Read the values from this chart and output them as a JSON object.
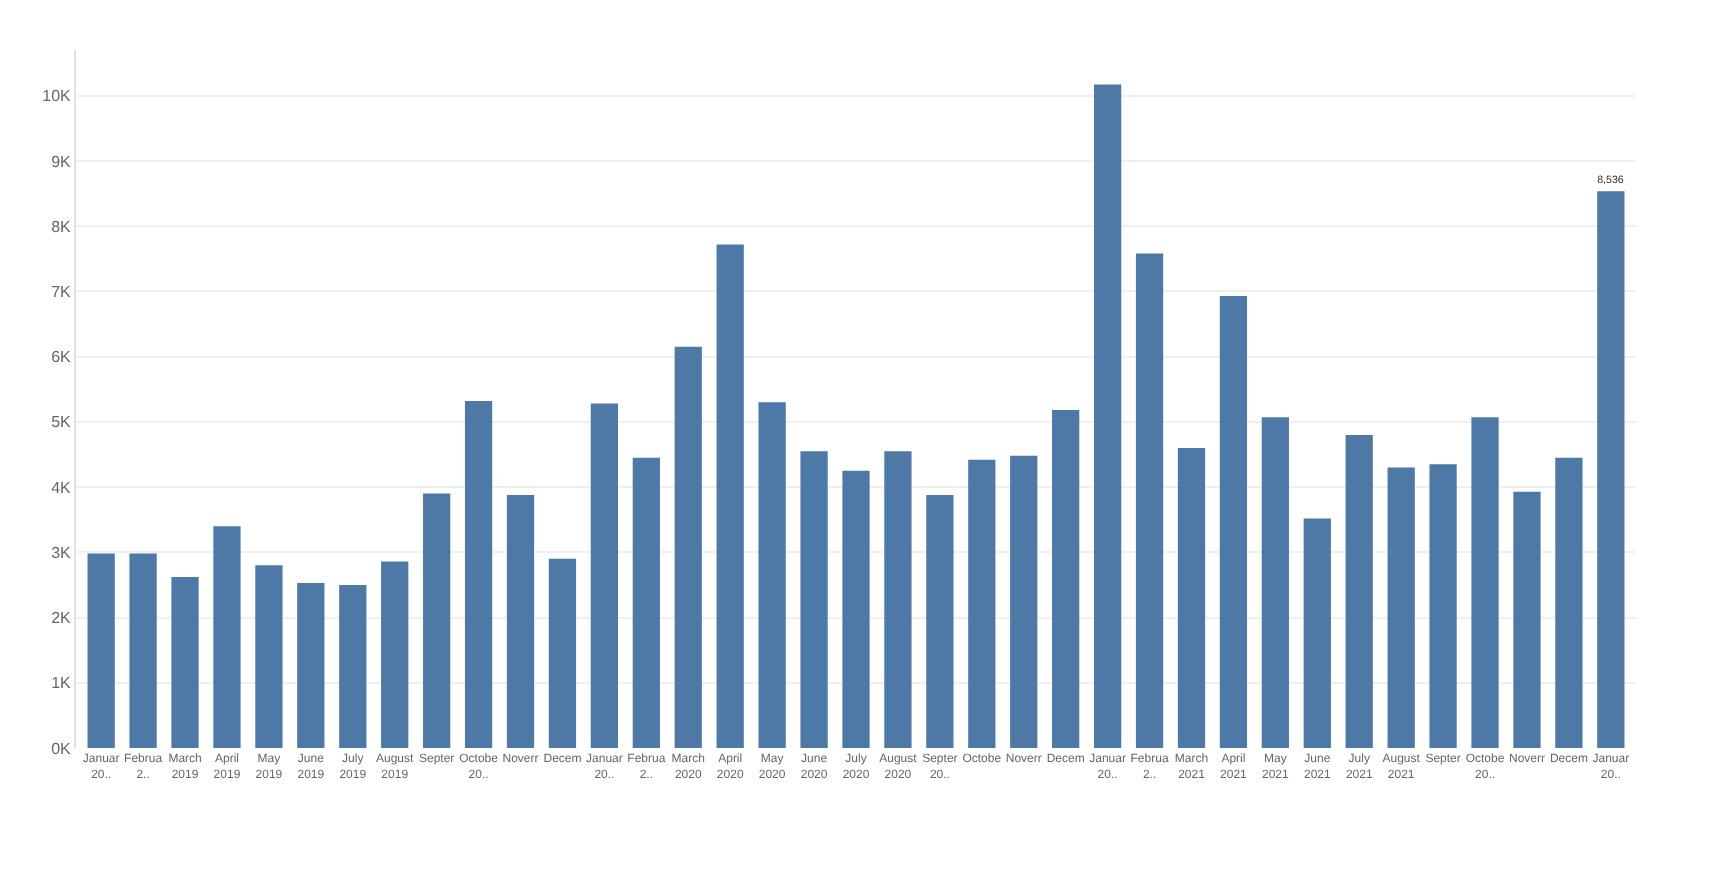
{
  "chart_data": {
    "type": "bar",
    "categories": [
      "Januar\n20..",
      "Februa\n2..",
      "March\n2019",
      "April\n2019",
      "May\n2019",
      "June\n2019",
      "July\n2019",
      "August\n2019",
      "Septer",
      "Octobe\n20..",
      "Noverr",
      "Decem",
      "Januar\n20..",
      "Februa\n2..",
      "March\n2020",
      "April\n2020",
      "May\n2020",
      "June\n2020",
      "July\n2020",
      "August\n2020",
      "Septer\n20..",
      "Octobe",
      "Noverr",
      "Decem",
      "Januar\n20..",
      "Februa\n2..",
      "March\n2021",
      "April\n2021",
      "May\n2021",
      "June\n2021",
      "July\n2021",
      "August\n2021",
      "Septer",
      "Octobe\n20..",
      "Noverr",
      "Decem",
      "Januar\n20.."
    ],
    "values": [
      2980,
      2980,
      2620,
      3400,
      2800,
      2530,
      2500,
      2860,
      3900,
      5320,
      3880,
      2900,
      5280,
      4450,
      6150,
      7720,
      5300,
      4550,
      4250,
      4550,
      3880,
      4420,
      4480,
      5180,
      10170,
      7580,
      4600,
      6930,
      5070,
      3520,
      4800,
      4300,
      4350,
      5070,
      3930,
      4450,
      8536
    ],
    "value_labels": [
      null,
      null,
      null,
      null,
      null,
      null,
      null,
      null,
      null,
      null,
      null,
      null,
      null,
      null,
      null,
      null,
      null,
      null,
      null,
      null,
      null,
      null,
      null,
      null,
      null,
      null,
      null,
      null,
      null,
      null,
      null,
      null,
      null,
      null,
      null,
      null,
      "8,536"
    ],
    "color": "#4e79a7",
    "ylim": [
      0,
      10700
    ],
    "yticks": [
      {
        "value": 0,
        "label": "0K"
      },
      {
        "value": 1000,
        "label": "1K"
      },
      {
        "value": 2000,
        "label": "2K"
      },
      {
        "value": 3000,
        "label": "3K"
      },
      {
        "value": 4000,
        "label": "4K"
      },
      {
        "value": 5000,
        "label": "5K"
      },
      {
        "value": 6000,
        "label": "6K"
      },
      {
        "value": 7000,
        "label": "7K"
      },
      {
        "value": 8000,
        "label": "8K"
      },
      {
        "value": 9000,
        "label": "9K"
      },
      {
        "value": 10000,
        "label": "10K"
      }
    ],
    "grid": "y",
    "legend": false
  }
}
